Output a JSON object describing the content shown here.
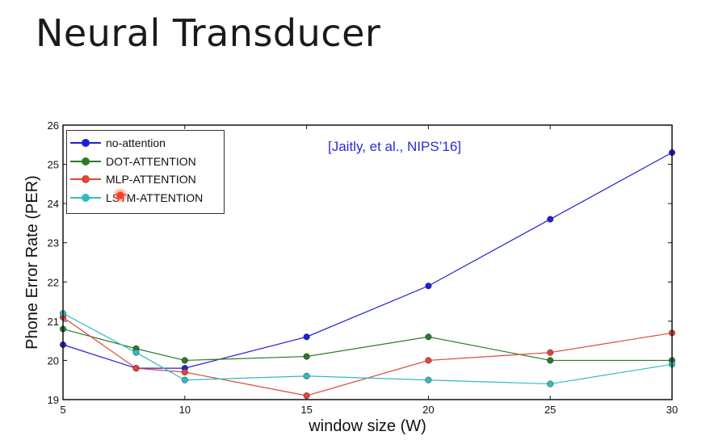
{
  "slide": {
    "title": "Neural Transducer"
  },
  "citation": "[Jaitly, et al., NIPS’16]",
  "chart_data": {
    "type": "line",
    "title": "",
    "xlabel": "window size (W)",
    "ylabel": "Phone Error Rate (PER)",
    "x": [
      5,
      8,
      10,
      15,
      20,
      25,
      30
    ],
    "xlim": [
      5,
      30
    ],
    "ylim": [
      19,
      26
    ],
    "xticks": [
      "5",
      "10",
      "15",
      "20",
      "25",
      "30"
    ],
    "yticks": [
      "19",
      "20",
      "21",
      "22",
      "23",
      "24",
      "25",
      "26"
    ],
    "grid": false,
    "legend_position": "top-left",
    "series": [
      {
        "name": "no-attention",
        "color": "#1f1fd6",
        "values": [
          20.4,
          19.8,
          19.8,
          20.6,
          21.9,
          23.6,
          25.3
        ]
      },
      {
        "name": "DOT-ATTENTION",
        "color": "#2b7a2b",
        "values": [
          20.8,
          20.3,
          20.0,
          20.1,
          20.6,
          20.0,
          20.0
        ]
      },
      {
        "name": "MLP-ATTENTION",
        "color": "#e0453a",
        "values": [
          21.1,
          19.8,
          19.7,
          19.1,
          20.0,
          20.2,
          20.7
        ]
      },
      {
        "name": "LSTM-ATTENTION",
        "color": "#2fbcbf",
        "values": [
          21.2,
          20.2,
          19.5,
          19.6,
          19.5,
          19.4,
          19.9
        ]
      }
    ]
  }
}
